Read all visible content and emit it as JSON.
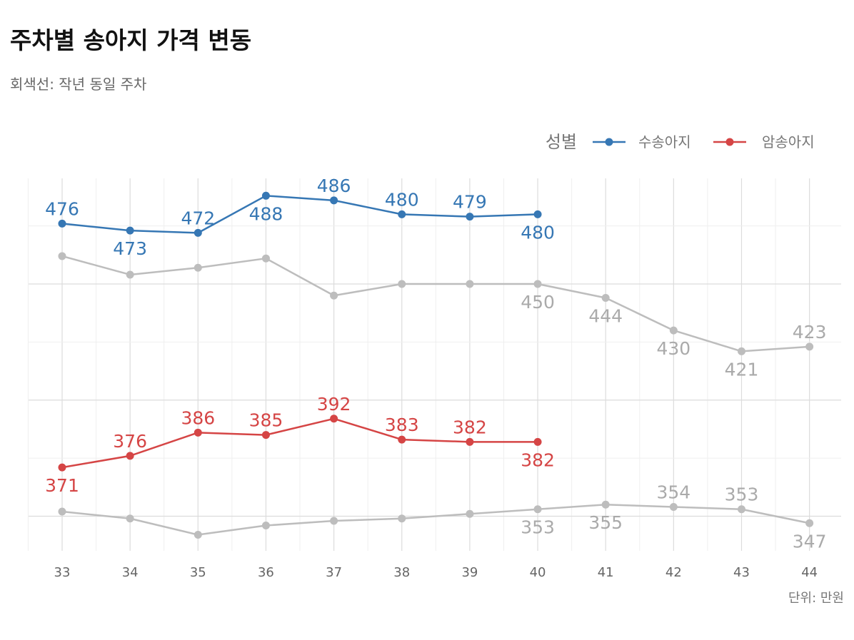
{
  "title": "주차별 송아지 가격 변동",
  "subtitle": "회색선: 작년 동일 주차",
  "unit_label": "단위: 만원",
  "colors": {
    "male": "#3677b4",
    "female": "#d54545",
    "last_year": "#bdbdbd",
    "last_year_label": "#aaaaaa"
  },
  "chart_data": {
    "type": "line",
    "title": "주차별 송아지 가격 변동",
    "subtitle": "회색선: 작년 동일 주차",
    "x": [
      33,
      34,
      35,
      36,
      37,
      38,
      39,
      40,
      41,
      42,
      43,
      44
    ],
    "ylim": [
      340,
      495
    ],
    "legend": {
      "title": "성별",
      "placement": "top-right"
    },
    "series": [
      {
        "name": "수송아지",
        "color": "#3677b4",
        "values": [
          476,
          473,
          472,
          488,
          486,
          480,
          479,
          480,
          null,
          null,
          null,
          null
        ],
        "labels": [
          476,
          473,
          472,
          488,
          486,
          480,
          479,
          480,
          null,
          null,
          null,
          null
        ],
        "label_pos": [
          "above",
          "below",
          "above",
          "below",
          "above",
          "above",
          "above",
          "below"
        ]
      },
      {
        "name": "암송아지",
        "color": "#d54545",
        "values": [
          371,
          376,
          386,
          385,
          392,
          383,
          382,
          382,
          null,
          null,
          null,
          null
        ],
        "labels": [
          371,
          376,
          386,
          385,
          392,
          383,
          382,
          382,
          null,
          null,
          null,
          null
        ],
        "label_pos": [
          "below",
          "above",
          "above",
          "above",
          "above",
          "above",
          "above",
          "below"
        ]
      },
      {
        "name": "",
        "color": "#bdbdbd",
        "legend": false,
        "values": [
          462,
          454,
          457,
          461,
          445,
          450,
          450,
          450,
          444,
          430,
          421,
          423
        ],
        "labels": [
          null,
          null,
          null,
          null,
          null,
          null,
          null,
          450,
          444,
          430,
          421,
          423
        ],
        "label_pos": [
          null,
          null,
          null,
          null,
          null,
          null,
          null,
          "below",
          "below",
          "below",
          "below",
          "above"
        ]
      },
      {
        "name": "",
        "color": "#bdbdbd",
        "legend": false,
        "values": [
          352,
          349,
          342,
          346,
          348,
          349,
          351,
          353,
          355,
          354,
          353,
          347
        ],
        "labels": [
          null,
          null,
          null,
          null,
          null,
          null,
          null,
          353,
          355,
          354,
          353,
          347
        ],
        "label_pos": [
          null,
          null,
          null,
          null,
          null,
          null,
          null,
          "below",
          "below",
          "above",
          "above",
          "below"
        ]
      }
    ]
  }
}
